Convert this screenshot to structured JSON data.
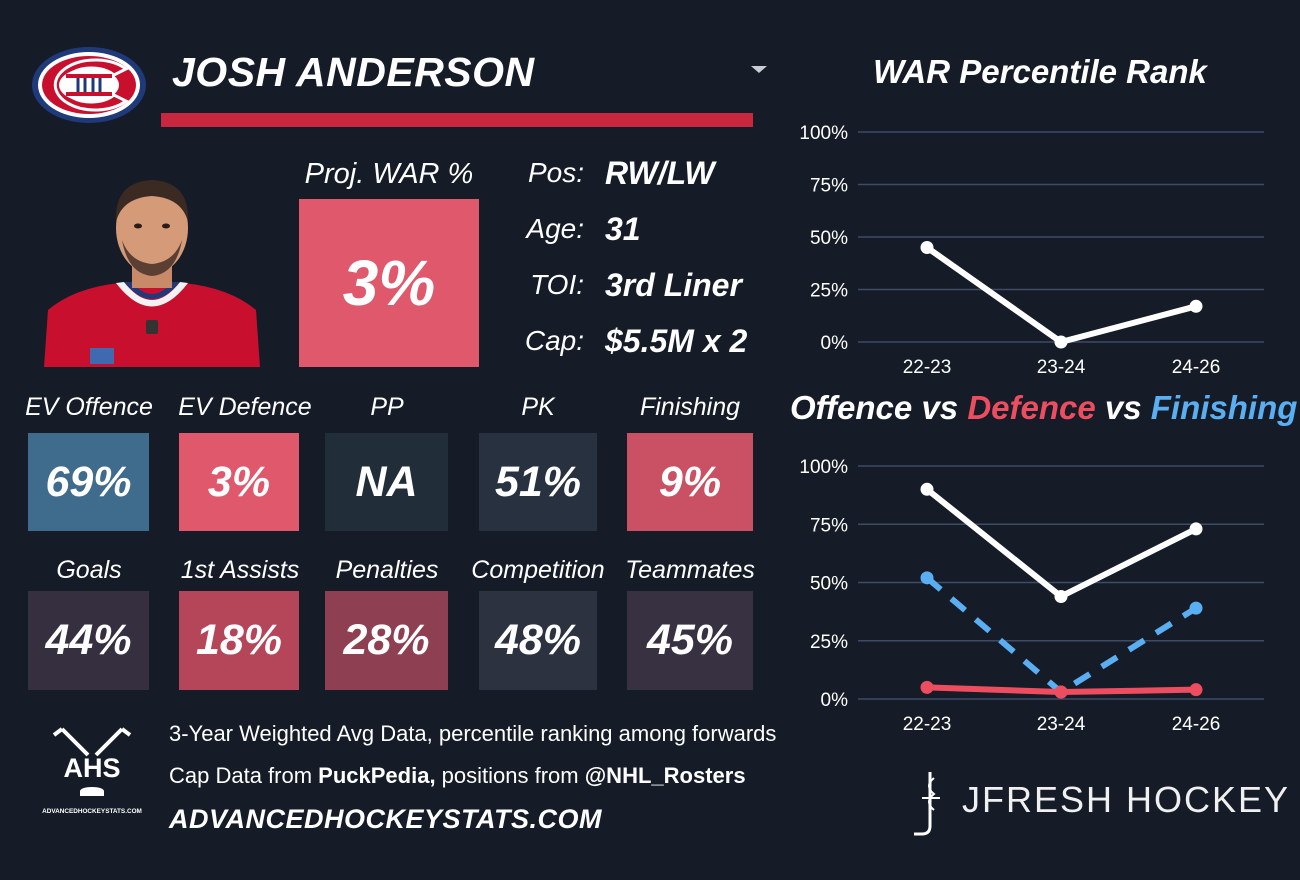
{
  "player": {
    "name": "JOSH ANDERSON",
    "proj_war_label": "Proj. WAR %",
    "proj_war_value": "3%",
    "info": [
      {
        "label": "Pos:",
        "value": "RW/LW"
      },
      {
        "label": "Age:",
        "value": "31"
      },
      {
        "label": "TOI:",
        "value": "3rd Liner"
      },
      {
        "label": "Cap:",
        "value": "$5.5M x 2"
      }
    ]
  },
  "tiles_row1": [
    {
      "label": "EV Offence",
      "value": "69%",
      "color": "#3f6b8d"
    },
    {
      "label": "EV Defence",
      "value": "3%",
      "color": "#e0586b"
    },
    {
      "label": "PP",
      "value": "NA",
      "color": "#222d3a"
    },
    {
      "label": "PK",
      "value": "51%",
      "color": "#283140"
    },
    {
      "label": "Finishing",
      "value": "9%",
      "color": "#c95163"
    }
  ],
  "tiles_row2": [
    {
      "label": "Goals",
      "value": "44%",
      "color": "#362f3f"
    },
    {
      "label": "1st Assists",
      "value": "18%",
      "color": "#b5465a"
    },
    {
      "label": "Penalties",
      "value": "28%",
      "color": "#8e3f52"
    },
    {
      "label": "Competition",
      "value": "48%",
      "color": "#2d3241"
    },
    {
      "label": "Teammates",
      "value": "45%",
      "color": "#373142"
    }
  ],
  "footer": {
    "line1": "3-Year Weighted Avg Data, percentile ranking among forwards",
    "line2_prefix": "Cap Data from ",
    "line2_bold1": "PuckPedia,",
    "line2_mid": " positions from ",
    "line2_bold2": "@NHL_Rosters",
    "url": "ADVANCEDHOCKEYSTATS.COM",
    "ahs_text": "AHS",
    "ahs_small": "ADVANCEDHOCKEYSTATS.COM",
    "brand": "JFRESH HOCKEY"
  },
  "chart_titles": {
    "war": "WAR Percentile Rank",
    "ovd_part1": "Offence",
    "ovd_vs1": " vs ",
    "ovd_part2": "Defence",
    "ovd_vs2": " vs ",
    "ovd_part3": "Finishing"
  },
  "chart_data": [
    {
      "type": "line",
      "title": "WAR Percentile Rank",
      "categories": [
        "22-23",
        "23-24",
        "24-26"
      ],
      "yticks": [
        "100%",
        "75%",
        "50%",
        "25%",
        "0%"
      ],
      "ylim": [
        0,
        100
      ],
      "series": [
        {
          "name": "WAR",
          "values": [
            45,
            0,
            17
          ],
          "color": "#ffffff",
          "dashed": false
        }
      ]
    },
    {
      "type": "line",
      "title": "Offence vs Defence vs Finishing",
      "categories": [
        "22-23",
        "23-24",
        "24-26"
      ],
      "yticks": [
        "100%",
        "75%",
        "50%",
        "25%",
        "0%"
      ],
      "ylim": [
        0,
        100
      ],
      "series": [
        {
          "name": "Offence",
          "values": [
            90,
            44,
            73
          ],
          "color": "#ffffff",
          "dashed": false
        },
        {
          "name": "Finishing",
          "values": [
            52,
            3,
            39
          ],
          "color": "#5aaef2",
          "dashed": true
        },
        {
          "name": "Defence",
          "values": [
            5,
            3,
            4
          ],
          "color": "#ee4d60",
          "dashed": false
        }
      ]
    }
  ]
}
